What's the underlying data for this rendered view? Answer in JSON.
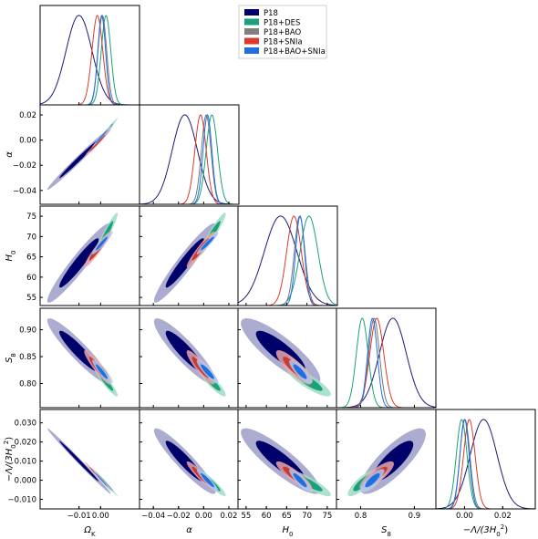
{
  "chart_data": {
    "type": "triangle_corner",
    "legend": {
      "placement": "top-right",
      "entries": [
        {
          "name": "P18",
          "color": "#00006b"
        },
        {
          "name": "P18+DES",
          "color": "#1aa17a"
        },
        {
          "name": "P18+BAO",
          "color": "#808080"
        },
        {
          "name": "P18+SNIa",
          "color": "#d93b30"
        },
        {
          "name": "P18+BAO+SNIa",
          "color": "#1f6fe0"
        }
      ]
    },
    "parameters": [
      {
        "key": "omk",
        "label": "Ω",
        "sub": "K",
        "range": [
          -0.028,
          0.018
        ],
        "ticks": [
          {
            "v": -0.01,
            "t": "−0.01"
          },
          {
            "v": 0.0,
            "t": "0.00"
          }
        ]
      },
      {
        "key": "alpha",
        "label": "α",
        "sub": "",
        "range": [
          -0.051,
          0.028
        ],
        "ticks": [
          {
            "v": -0.04,
            "t": "−0.04"
          },
          {
            "v": -0.02,
            "t": "−0.02"
          },
          {
            "v": 0.0,
            "t": "0.00"
          },
          {
            "v": 0.02,
            "t": "0.02"
          }
        ]
      },
      {
        "key": "h0",
        "label": "H",
        "sub": "0",
        "range": [
          53.0,
          77.5
        ],
        "ticks": [
          {
            "v": 55,
            "t": "55"
          },
          {
            "v": 60,
            "t": "60"
          },
          {
            "v": 65,
            "t": "65"
          },
          {
            "v": 70,
            "t": "70"
          },
          {
            "v": 75,
            "t": "75"
          }
        ]
      },
      {
        "key": "s8",
        "label": "S",
        "sub": "8",
        "range": [
          0.755,
          0.94
        ],
        "ticks": [
          {
            "v": 0.8,
            "t": "0.80"
          },
          {
            "v": 0.85,
            "t": "0.85"
          },
          {
            "v": 0.9,
            "t": "0.90"
          }
        ]
      },
      {
        "key": "lam",
        "label": "−Λ/(3H",
        "sub": "0",
        "sup": "2",
        "tail": ")",
        "range": [
          -0.015,
          0.037
        ],
        "ticks": [
          {
            "v": -0.01,
            "t": "−0.010"
          },
          {
            "v": 0.0,
            "t": "0.000"
          },
          {
            "v": 0.01,
            "t": "0.010"
          },
          {
            "v": 0.02,
            "t": "0.020"
          },
          {
            "v": 0.03,
            "t": "0.030"
          }
        ]
      }
    ],
    "bottom_ticks": {
      "omk": [
        {
          "v": -0.01,
          "t": "−0.01"
        },
        {
          "v": 0.0,
          "t": "0.00"
        }
      ],
      "alpha": [
        {
          "v": -0.04,
          "t": "−0.04"
        },
        {
          "v": -0.02,
          "t": "−0.02"
        },
        {
          "v": 0.0,
          "t": "0.00"
        },
        {
          "v": 0.02,
          "t": "0.02"
        }
      ],
      "h0": [
        {
          "v": 55,
          "t": "55"
        },
        {
          "v": 60,
          "t": "60"
        },
        {
          "v": 65,
          "t": "65"
        },
        {
          "v": 70,
          "t": "70"
        },
        {
          "v": 75,
          "t": "75"
        }
      ],
      "s8": [
        {
          "v": 0.8,
          "t": "0.8"
        },
        {
          "v": 0.9,
          "t": "0.9"
        }
      ],
      "lam": [
        {
          "v": 0.0,
          "t": "0.00"
        },
        {
          "v": 0.02,
          "t": "0.02"
        }
      ]
    },
    "series": [
      {
        "name": "P18",
        "line": "#1b1b7a",
        "dark": "#00006b",
        "light": "#9e9ec9",
        "mean": {
          "omk": -0.01,
          "alpha": -0.015,
          "h0": 63.5,
          "s8": 0.86,
          "lam": 0.01
        },
        "sigma": {
          "omk": 0.006,
          "alpha": 0.01,
          "h0": 4.0,
          "s8": 0.025,
          "lam": 0.007
        }
      },
      {
        "name": "P18+DES",
        "line": "#1aa17a",
        "dark": "#1aa17a",
        "light": "#9fdcc7",
        "mean": {
          "omk": 0.0025,
          "alpha": 0.0065,
          "h0": 70.5,
          "s8": 0.803,
          "lam": -0.0015
        },
        "sigma": {
          "omk": 0.0022,
          "alpha": 0.0045,
          "h0": 2.2,
          "s8": 0.011,
          "lam": 0.0028
        }
      },
      {
        "name": "P18+BAO",
        "line": "#777777",
        "dark": "#888888",
        "light": "#cfcfcf",
        "mean": {
          "omk": 0.0008,
          "alpha": 0.002,
          "h0": 68.2,
          "s8": 0.825,
          "lam": 0.0002
        },
        "sigma": {
          "omk": 0.002,
          "alpha": 0.0038,
          "h0": 1.3,
          "s8": 0.01,
          "lam": 0.0026
        }
      },
      {
        "name": "P18+SNIa",
        "line": "#d93b30",
        "dark": "#c83a36",
        "light": "#eaa6a4",
        "mean": {
          "omk": -0.0015,
          "alpha": -0.0025,
          "h0": 66.8,
          "s8": 0.83,
          "lam": 0.0025
        },
        "sigma": {
          "omk": 0.0025,
          "alpha": 0.0045,
          "h0": 1.8,
          "s8": 0.013,
          "lam": 0.003
        }
      },
      {
        "name": "P18+BAO+SNIa",
        "line": "#1f6fe0",
        "dark": "#1f6fe0",
        "light": "#a9c5f3",
        "mean": {
          "omk": 0.0005,
          "alpha": 0.003,
          "h0": 68.3,
          "s8": 0.822,
          "lam": 0.0
        },
        "sigma": {
          "omk": 0.0018,
          "alpha": 0.0035,
          "h0": 1.1,
          "s8": 0.009,
          "lam": 0.0024
        }
      }
    ],
    "correlations": {
      "omk|alpha": 0.99,
      "omk|h0": 0.95,
      "omk|s8": -0.93,
      "omk|lam": -0.995,
      "alpha|h0": 0.95,
      "alpha|s8": -0.9,
      "alpha|lam": -0.93,
      "h0|s8": -0.85,
      "h0|lam": -0.88,
      "s8|lam": 0.82
    }
  }
}
